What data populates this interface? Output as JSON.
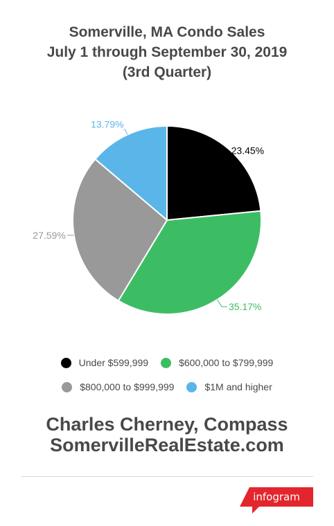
{
  "title": {
    "line1": "Somerville, MA Condo Sales",
    "line2": "July 1 through September 30, 2019",
    "line3": "(3rd Quarter)"
  },
  "chart_data": {
    "type": "pie",
    "slices": [
      {
        "label": "Under $599,999",
        "value": 23.45,
        "display": "23.45%",
        "color": "#000000",
        "label_color": "#000000"
      },
      {
        "label": "$600,000 to $799,999",
        "value": 35.17,
        "display": "35.17%",
        "color": "#3dbd63",
        "label_color": "#3dbd63"
      },
      {
        "label": "$800,000 to $999,999",
        "value": 27.59,
        "display": "27.59%",
        "color": "#999999",
        "label_color": "#999999"
      },
      {
        "label": "$1M and higher",
        "value": 13.79,
        "display": "13.79%",
        "color": "#5ab6e8",
        "label_color": "#5ab6e8"
      }
    ],
    "legend_placement": "bottom"
  },
  "footer": {
    "line1": "Charles Cherney, Compass",
    "line2": "SomervilleRealEstate.com"
  },
  "brand": {
    "label": "infogram",
    "color": "#e3262d"
  }
}
